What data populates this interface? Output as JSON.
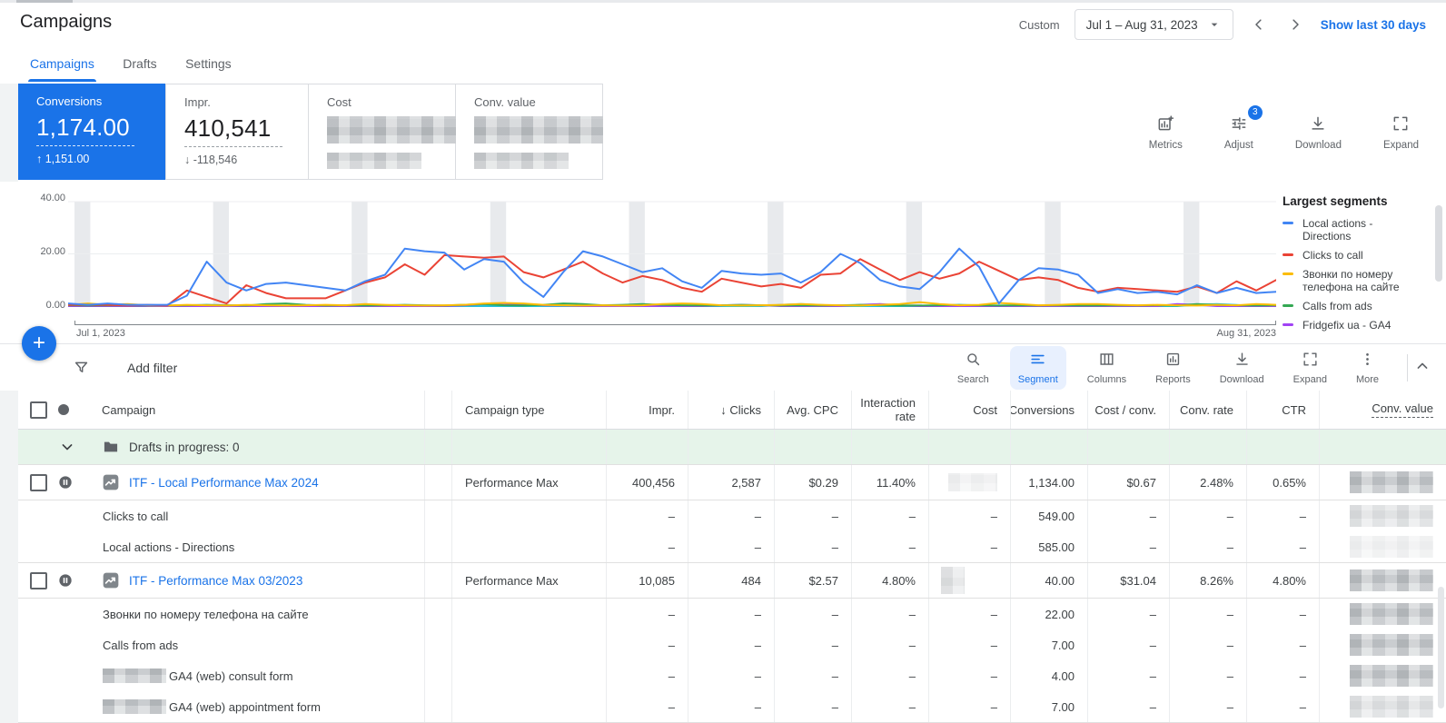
{
  "header": {
    "title": "Campaigns",
    "date_label": "Custom",
    "date_range": "Jul 1 – Aug 31, 2023",
    "show_last": "Show last 30 days"
  },
  "tabs": [
    {
      "label": "Campaigns",
      "active": true
    },
    {
      "label": "Drafts",
      "active": false
    },
    {
      "label": "Settings",
      "active": false
    }
  ],
  "scorecards": [
    {
      "label": "Conversions",
      "value": "1,174.00",
      "delta": "↑ 1,151.00",
      "selected": true,
      "redacted": false
    },
    {
      "label": "Impr.",
      "value": "410,541",
      "delta": "↓ -118,546",
      "selected": false,
      "redacted": false
    },
    {
      "label": "Cost",
      "redacted": true
    },
    {
      "label": "Conv. value",
      "redacted": true
    }
  ],
  "card_actions": [
    {
      "label": "Metrics",
      "icon": "metrics"
    },
    {
      "label": "Adjust",
      "icon": "adjust",
      "badge": "3"
    },
    {
      "label": "Download",
      "icon": "download"
    },
    {
      "label": "Expand",
      "icon": "expand"
    }
  ],
  "fab": {
    "label": "+"
  },
  "filter_bar": {
    "add_filter": "Add filter"
  },
  "toolbar": [
    {
      "label": "Search",
      "icon": "search",
      "active": false
    },
    {
      "label": "Segment",
      "icon": "segment",
      "active": true
    },
    {
      "label": "Columns",
      "icon": "columns",
      "active": false
    },
    {
      "label": "Reports",
      "icon": "reports",
      "active": false
    },
    {
      "label": "Download",
      "icon": "download",
      "active": false
    },
    {
      "label": "Expand",
      "icon": "expand",
      "active": false
    },
    {
      "label": "More",
      "icon": "more",
      "active": false
    }
  ],
  "chart_data": {
    "type": "line",
    "title": "",
    "xlabel": "",
    "ylabel": "",
    "ylim": [
      0,
      40
    ],
    "yticks": [
      "0.00",
      "20.00",
      "40.00"
    ],
    "x_start_label": "Jul 1, 2023",
    "x_end_label": "Aug 31, 2023",
    "x_days": 62,
    "grid": "horizontal",
    "legend_position": "right",
    "legend_title": "Largest segments",
    "weekend_band_start_days": [
      0,
      7,
      14,
      21,
      28,
      35,
      42,
      49,
      56
    ],
    "band_color": "#e8eaed",
    "series": [
      {
        "name": "Local actions - Directions",
        "color": "#4285f4",
        "values": [
          1,
          0.5,
          1,
          0.5,
          0.5,
          0.5,
          4,
          17,
          9,
          6,
          8.5,
          9,
          8,
          7,
          6,
          9.5,
          12,
          22,
          21,
          20.5,
          14,
          18,
          17,
          9,
          3.5,
          13,
          21,
          19,
          16,
          13,
          14.5,
          9.5,
          7,
          13.5,
          12.5,
          12,
          12.5,
          9,
          13,
          20,
          16.5,
          10,
          7.5,
          6.5,
          13,
          22,
          15,
          1,
          10,
          14.5,
          14,
          12,
          5,
          6.5,
          5,
          5.5,
          4.5,
          8,
          5,
          7,
          5,
          5.5
        ]
      },
      {
        "name": "Clicks to call",
        "color": "#ea4335",
        "values": [
          0.5,
          0.5,
          0.5,
          0.2,
          0.5,
          0.2,
          6,
          3.5,
          1,
          8,
          5,
          3,
          3,
          3,
          6,
          9,
          11,
          16,
          12,
          19.5,
          19,
          18.5,
          19,
          13,
          11,
          14,
          17,
          12.5,
          9,
          11.5,
          10,
          7,
          5.5,
          10.5,
          9,
          7.5,
          8.5,
          7,
          12,
          12.5,
          18,
          14,
          10,
          13,
          10.5,
          12.5,
          17,
          13.5,
          10,
          11,
          10,
          7,
          5.5,
          7,
          6.5,
          6,
          5.5,
          7.5,
          5,
          9.5,
          6,
          10
        ]
      },
      {
        "name": "Звонки по номеру телефона на сайте",
        "color": "#fbbc04",
        "values": [
          0.5,
          1,
          0.5,
          0.8,
          0.3,
          0.2,
          0.5,
          0.3,
          0.2,
          0.5,
          0.3,
          0.2,
          0.3,
          0.5,
          0.3,
          0.8,
          0.5,
          0.3,
          0.2,
          0.3,
          0.5,
          1,
          1.2,
          1,
          0.5,
          0.3,
          0.2,
          0.3,
          0.2,
          0.3,
          0.8,
          1,
          0.8,
          0.3,
          0.2,
          0.3,
          0.5,
          0.8,
          0.5,
          0.3,
          0.2,
          0.5,
          0.8,
          1.5,
          0.8,
          0.3,
          0.5,
          1.2,
          0.8,
          0.3,
          0.5,
          0.8,
          0.8,
          0.5,
          0.3,
          0.5,
          0.3,
          0.2,
          0.5,
          0.3,
          0.8,
          0.5
        ]
      },
      {
        "name": "Calls from ads",
        "color": "#34a853",
        "values": [
          0.3,
          0.2,
          0.3,
          0.2,
          0.2,
          0.2,
          0.3,
          0.5,
          0.3,
          0.2,
          0.8,
          1,
          0.5,
          0.2,
          0.3,
          0.2,
          0.3,
          0.5,
          0.3,
          0.2,
          0.5,
          0.8,
          0.3,
          0.2,
          0.5,
          1,
          0.8,
          0.3,
          0.5,
          0.8,
          0.5,
          0.3,
          0.2,
          0.3,
          0.5,
          0.3,
          0.2,
          0.3,
          0.2,
          0.3,
          0.5,
          0.3,
          0.2,
          0.2,
          0.3,
          0.5,
          0.3,
          0.2,
          0.3,
          0.2,
          0.3,
          0.2,
          0.2,
          0.3,
          0.2,
          0.3,
          0.2,
          0.8,
          0.5,
          0.3,
          0.2,
          0.3
        ]
      },
      {
        "name": "Fridgefix ua - GA4",
        "color": "#a142f4",
        "values": [
          0,
          0,
          0,
          0,
          0,
          0,
          0,
          0,
          0,
          0,
          0,
          0,
          0,
          0,
          0,
          0,
          0,
          0,
          0,
          0,
          0.3,
          0.8,
          0.5,
          0.8,
          0.3,
          0.2,
          0,
          0,
          0,
          0,
          0,
          0,
          0,
          0.3,
          0.5,
          0.3,
          0,
          0,
          0,
          0,
          0.5,
          0.8,
          0.3,
          0,
          0,
          0,
          0,
          0,
          0,
          0,
          0,
          0,
          0,
          0,
          0,
          0,
          0.8,
          0.5,
          0,
          0,
          0,
          0
        ]
      },
      {
        "name": "",
        "color": "#24c1e0",
        "values": [
          0,
          0,
          0,
          0,
          0,
          0,
          0,
          0,
          0,
          0,
          0,
          0,
          0,
          0,
          0,
          0,
          0,
          0,
          0,
          0,
          0,
          0,
          0,
          0,
          0,
          0,
          0,
          0,
          0,
          0,
          0,
          0,
          0,
          0,
          0,
          0,
          0.5,
          0.8,
          0.4,
          0,
          0,
          0,
          0,
          0,
          0,
          0,
          0,
          0,
          0,
          0,
          0,
          0,
          0,
          0,
          0,
          0,
          0,
          0.5,
          0.8,
          0.4,
          0,
          0.3
        ]
      }
    ],
    "legend_items": [
      {
        "label": "Local actions - Directions",
        "color": "#4285f4"
      },
      {
        "label": "Clicks to call",
        "color": "#ea4335"
      },
      {
        "label": "Звонки по номеру телефона на сайте",
        "color": "#fbbc04"
      },
      {
        "label": "Calls from ads",
        "color": "#34a853"
      },
      {
        "label": "Fridgefix ua - GA4",
        "color": "#a142f4",
        "partial": true
      }
    ]
  },
  "table": {
    "columns": [
      {
        "label": "Campaign"
      },
      {
        "label": ""
      },
      {
        "label": "Campaign type"
      },
      {
        "label": "Impr."
      },
      {
        "label": "Clicks",
        "sort": "desc"
      },
      {
        "label": "Avg. CPC"
      },
      {
        "label": "Interaction rate"
      },
      {
        "label": "Cost"
      },
      {
        "label": "Conversions"
      },
      {
        "label": "Cost / conv."
      },
      {
        "label": "Conv. rate"
      },
      {
        "label": "CTR"
      },
      {
        "label": "Conv. value",
        "dashed_underline": true
      }
    ],
    "rows": [
      {
        "kind": "group",
        "label": "Drafts in progress: 0"
      },
      {
        "kind": "campaign",
        "name": "ITF - Local Performance Max 2024",
        "status": "paused",
        "campaign_type": "Performance Max",
        "values": [
          "400,456",
          "2,587",
          "$0.29",
          "11.40%",
          null,
          "1,134.00",
          "$0.67",
          "2.48%",
          "0.65%",
          null
        ],
        "redactions": {
          "4": "faint",
          "9": "strong"
        }
      },
      {
        "kind": "segment",
        "label": "Clicks to call",
        "values": [
          "–",
          "–",
          "–",
          "–",
          "–",
          "549.00",
          "–",
          "–",
          "–",
          null
        ],
        "redactions": {
          "9": "light"
        }
      },
      {
        "kind": "segment",
        "label": "Local actions - Directions",
        "values": [
          "–",
          "–",
          "–",
          "–",
          "–",
          "585.00",
          "–",
          "–",
          "–",
          null
        ],
        "redactions": {
          "9": "faint"
        }
      },
      {
        "kind": "campaign",
        "name": "ITF - Performance Max 03/2023",
        "status": "paused",
        "campaign_type": "Performance Max",
        "values": [
          "10,085",
          "484",
          "$2.57",
          "4.80%",
          null,
          "40.00",
          "$31.04",
          "8.26%",
          "4.80%",
          null
        ],
        "redactions": {
          "4": "small",
          "9": "strong"
        }
      },
      {
        "kind": "segment",
        "label": "Звонки по номеру телефона на сайте",
        "values": [
          "–",
          "–",
          "–",
          "–",
          "–",
          "22.00",
          "–",
          "–",
          "–",
          null
        ],
        "redactions": {
          "9": "strong"
        }
      },
      {
        "kind": "segment",
        "label": "Calls from ads",
        "values": [
          "–",
          "–",
          "–",
          "–",
          "–",
          "7.00",
          "–",
          "–",
          "–",
          null
        ],
        "redactions": {}
      },
      {
        "kind": "segment",
        "label": "GA4 (web) consult form",
        "label_prefix_redacted": true,
        "values": [
          "–",
          "–",
          "–",
          "–",
          "–",
          "4.00",
          "–",
          "–",
          "–",
          null
        ],
        "redactions": {
          "9": "strong"
        }
      },
      {
        "kind": "segment",
        "label": "GA4 (web) appointment form",
        "label_prefix_redacted": true,
        "values": [
          "–",
          "–",
          "–",
          "–",
          "–",
          "7.00",
          "–",
          "–",
          "–",
          null
        ],
        "redactions": {
          "9": "light"
        }
      }
    ]
  }
}
